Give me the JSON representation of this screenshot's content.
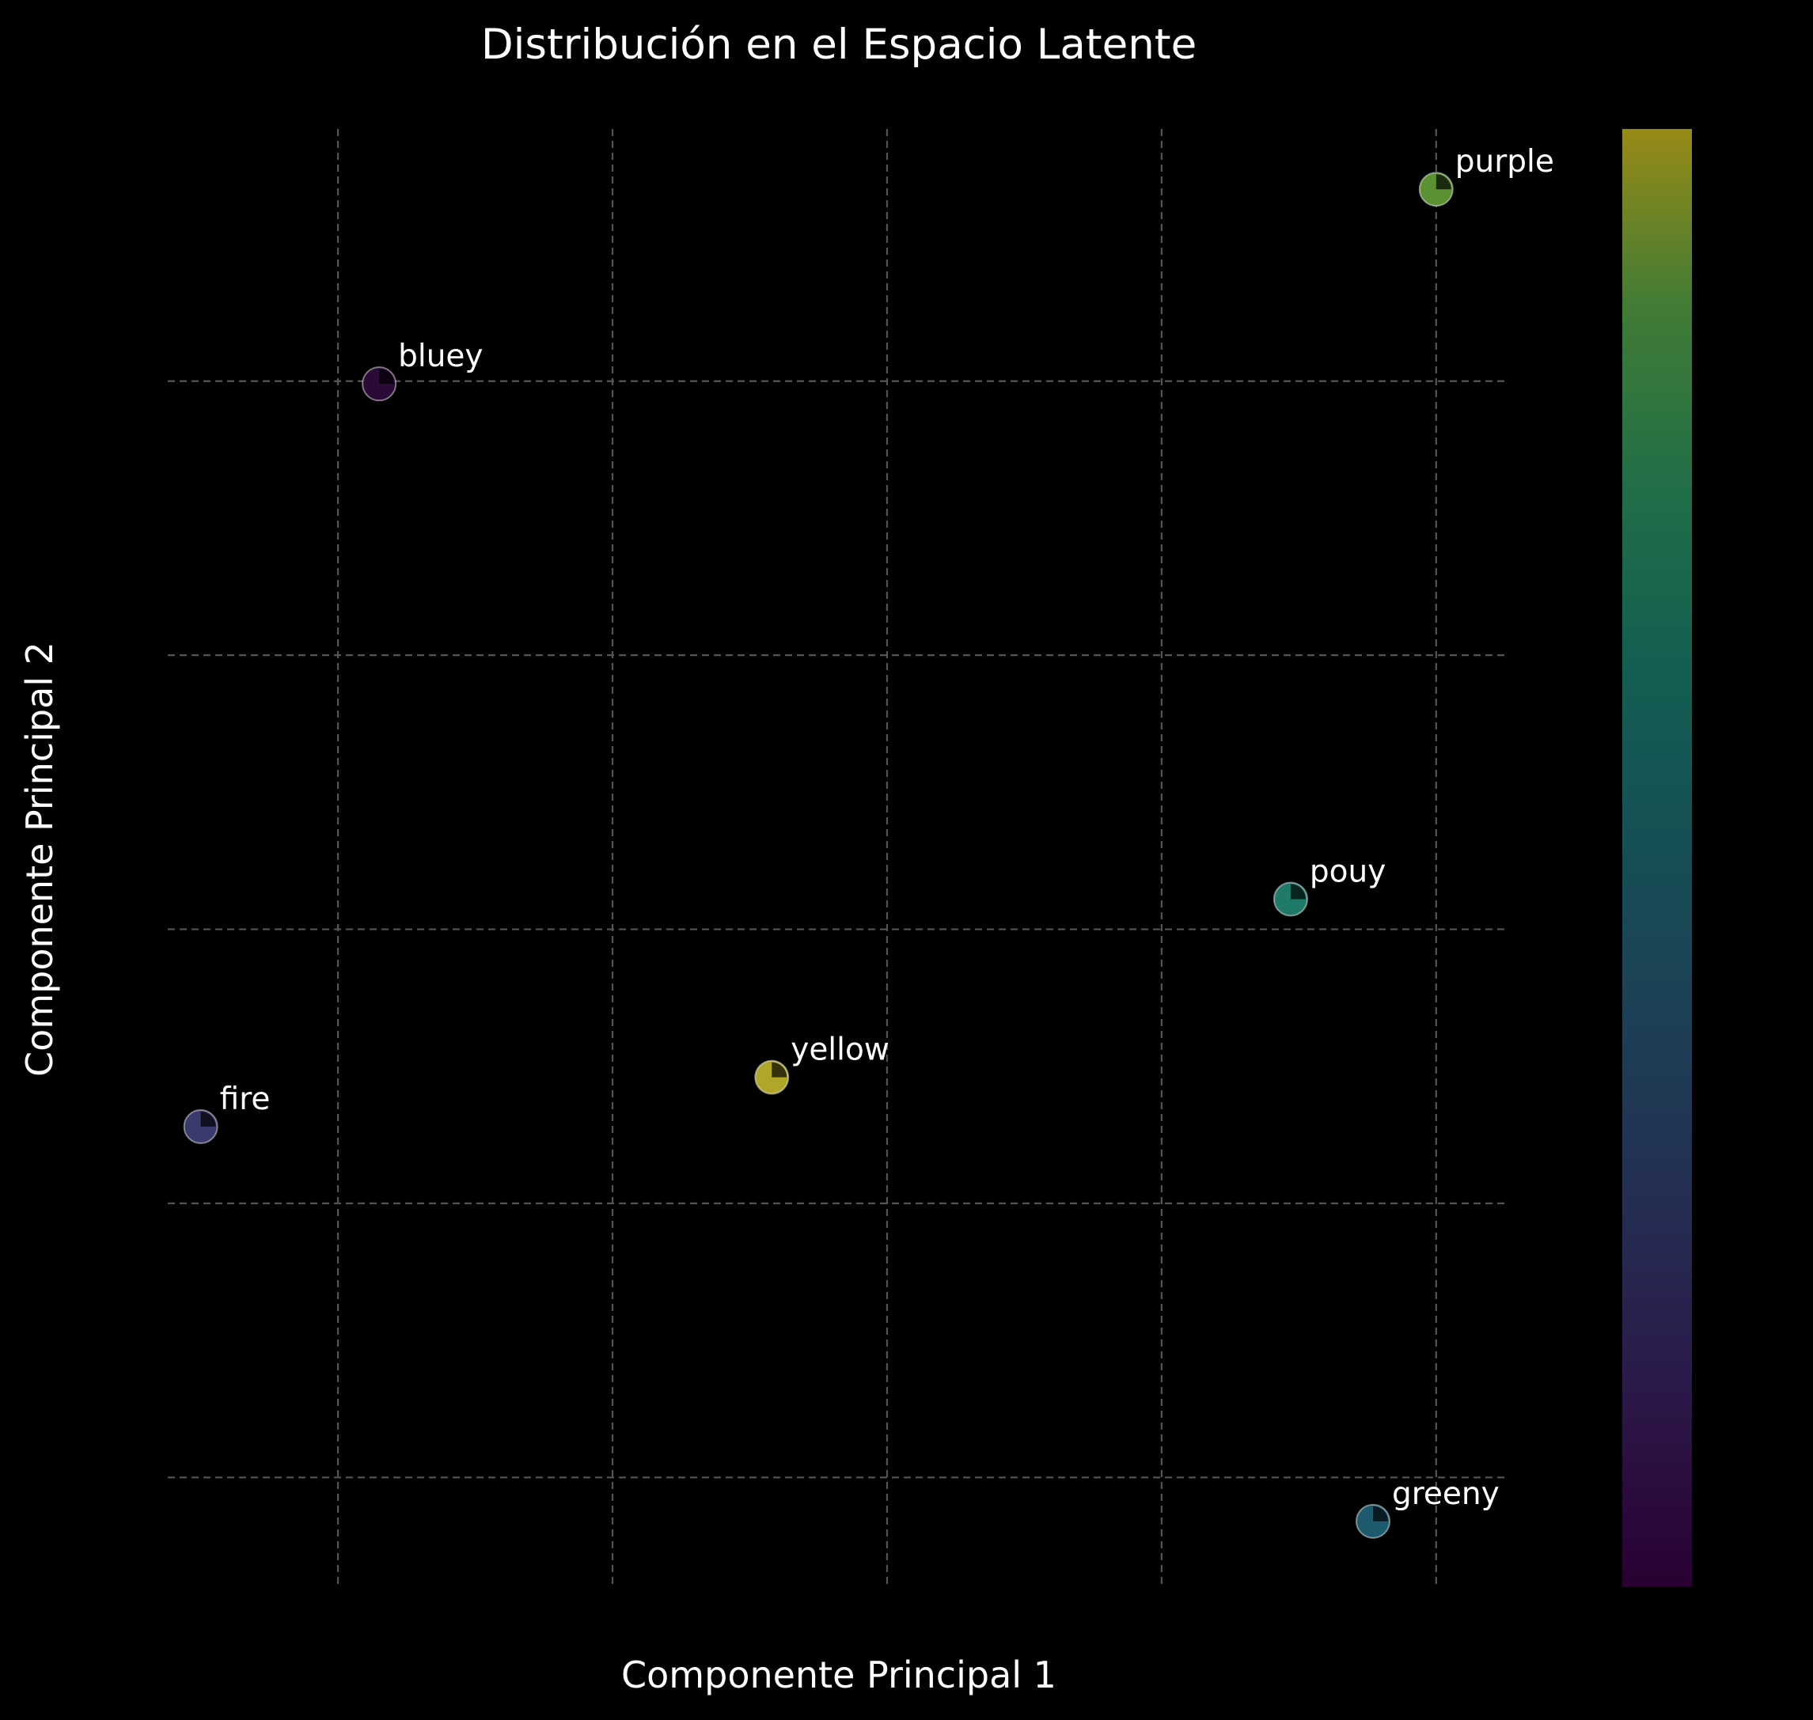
{
  "chart_data": {
    "type": "scatter",
    "title": "Distribución en el Espacio Latente",
    "xlabel": "Componente Principal 1",
    "ylabel": "Componente Principal 2",
    "xlim": [
      -1.12,
      3.76
    ],
    "ylim": [
      -2.4,
      2.92
    ],
    "grid": true,
    "axis_ticks_visible": false,
    "colorbar": {
      "visible": true,
      "colormap": "viridis",
      "alpha": 0.6,
      "tick_labels": []
    },
    "points": [
      {
        "label": "purple",
        "x": 3.5,
        "y": 2.7,
        "color": "#5b9132"
      },
      {
        "label": "bluey",
        "x": -0.35,
        "y": 1.99,
        "color": "#2b0a36"
      },
      {
        "label": "pouy",
        "x": 2.97,
        "y": 0.11,
        "color": "#1f7a6a"
      },
      {
        "label": "yellow",
        "x": 1.08,
        "y": -0.54,
        "color": "#b0a62a"
      },
      {
        "label": "fire",
        "x": -1.0,
        "y": -0.72,
        "color": "#3b3a6c"
      },
      {
        "label": "greeny",
        "x": 3.27,
        "y": -2.16,
        "color": "#1e5a6e"
      }
    ]
  }
}
